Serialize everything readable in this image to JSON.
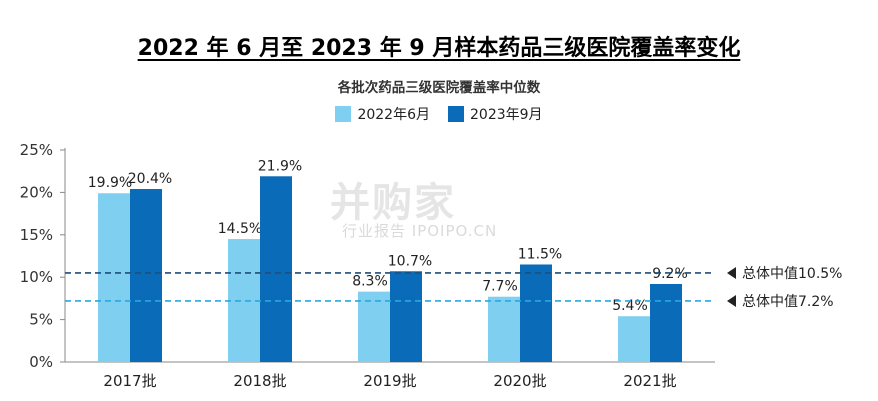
{
  "title": "2022 年 6 月至 2023 年 9 月样本药品三级医院覆盖率变化",
  "watermark": {
    "main": "并购家",
    "sub": "行业报告 IPOIPO.CN"
  },
  "colors": {
    "light": "#7fd0f0",
    "dark": "#0a6cb8",
    "dark_line": "#1f4e79",
    "light_line": "#2aa8e0"
  },
  "chart_data": {
    "type": "bar",
    "title": "各批次药品三级医院覆盖率中位数",
    "categories": [
      "2017批",
      "2018批",
      "2019批",
      "2020批",
      "2021批"
    ],
    "series": [
      {
        "name": "2022年6月",
        "values": [
          19.9,
          14.5,
          8.3,
          7.7,
          5.4
        ],
        "labels": [
          "19.9%",
          "14.5%",
          "8.3%",
          "7.7%",
          "5.4%"
        ]
      },
      {
        "name": "2023年9月",
        "values": [
          20.4,
          21.9,
          10.7,
          11.5,
          9.2
        ],
        "labels": [
          "20.4%",
          "21.9%",
          "10.7%",
          "11.5%",
          "9.2%"
        ]
      }
    ],
    "ylim": [
      0,
      25
    ],
    "yticks": [
      0,
      5,
      10,
      15,
      20,
      25
    ],
    "ytick_labels": [
      "0%",
      "5%",
      "10%",
      "15%",
      "20%",
      "25%"
    ],
    "reference_lines": [
      {
        "value": 10.5,
        "label": "总体中值10.5%",
        "style": "dashed"
      },
      {
        "value": 7.2,
        "label": "总体中值7.2%",
        "style": "dashed"
      }
    ],
    "legend_position": "top-center",
    "grid": false
  }
}
